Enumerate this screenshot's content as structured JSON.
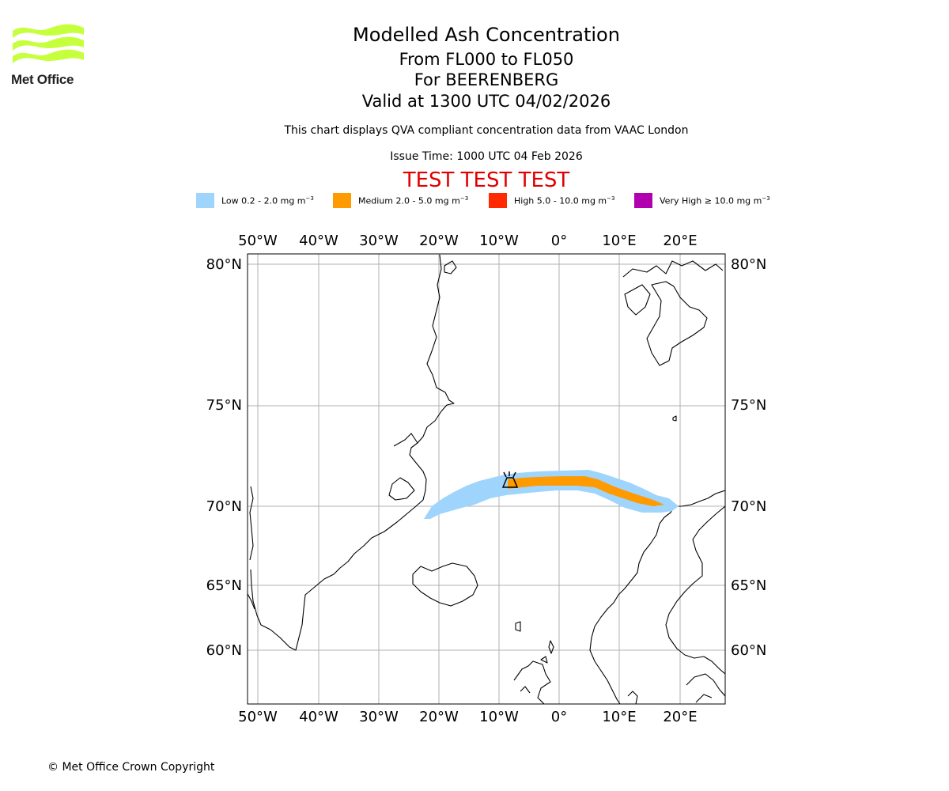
{
  "header": {
    "organisation": "Met Office",
    "title": "Modelled Ash Concentration",
    "levels": "From FL000 to FL050",
    "volcano": "For BEERENBERG",
    "valid": "Valid at 1300 UTC 04/02/2026",
    "note": "This chart displays QVA compliant concentration data from VAAC London",
    "issue": "Issue Time: 1000 UTC 04 Feb 2026",
    "test_banner": "TEST TEST TEST"
  },
  "legend": {
    "low": {
      "label": "Low 0.2 - 2.0 mg m",
      "exp": "−3",
      "color": "#9fd4fc"
    },
    "medium": {
      "label": "Medium 2.0 - 5.0 mg m",
      "exp": "−3",
      "color": "#ff9a00"
    },
    "high": {
      "label": "High 5.0 - 10.0 mg m",
      "exp": "−3",
      "color": "#ff2a00"
    },
    "very_high": {
      "label": "Very High  ≥  10.0 mg m",
      "exp": "−3",
      "color": "#b000b0"
    }
  },
  "map": {
    "longitudes": [
      "50°W",
      "40°W",
      "30°W",
      "20°W",
      "10°W",
      "0°",
      "10°E",
      "20°E"
    ],
    "latitudes": [
      "80°N",
      "75°N",
      "70°N",
      "65°N",
      "60°N"
    ],
    "volcano_marker": "volcano-icon"
  },
  "footer": {
    "copyright": "© Met Office Crown Copyright"
  }
}
